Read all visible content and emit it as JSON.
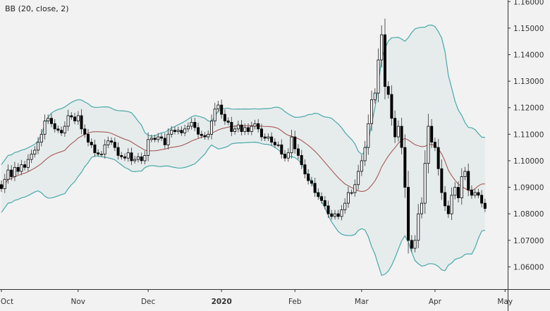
{
  "legend": "BB (20, close, 2)",
  "chart_data": {
    "type": "candlestick",
    "indicator": {
      "name": "Bollinger Bands",
      "period": 20,
      "source": "close",
      "stddev": 2
    },
    "ylim": [
      1.0516,
      1.1606
    ],
    "yticks": [
      "1.16000",
      "1.15000",
      "1.14000",
      "1.13000",
      "1.12000",
      "1.11000",
      "1.10000",
      "1.09000",
      "1.08000",
      "1.07000",
      "1.06000"
    ],
    "xticks": [
      {
        "label": "Oct",
        "bar": 0
      },
      {
        "label": "Nov",
        "bar": 23
      },
      {
        "label": "Dec",
        "bar": 44
      },
      {
        "label": "2020",
        "bar": 66,
        "bold": true
      },
      {
        "label": "Feb",
        "bar": 88
      },
      {
        "label": "Mar",
        "bar": 108
      },
      {
        "label": "Apr",
        "bar": 130
      },
      {
        "label": "May",
        "bar": 151
      }
    ],
    "closes": [
      1.0895,
      1.093,
      1.0965,
      1.094,
      1.0975,
      1.096,
      1.0985,
      1.0975,
      1.1005,
      1.1025,
      1.104,
      1.107,
      1.11,
      1.115,
      1.116,
      1.114,
      1.112,
      1.1115,
      1.1105,
      1.113,
      1.117,
      1.1165,
      1.115,
      1.117,
      1.112,
      1.11,
      1.107,
      1.106,
      1.103,
      1.1025,
      1.1025,
      1.106,
      1.1075,
      1.107,
      1.105,
      1.102,
      1.1015,
      1.101,
      1.103,
      1.1,
      1.1005,
      1.1015,
      1.1,
      1.102,
      1.108,
      1.1085,
      1.108,
      1.109,
      1.1085,
      1.106,
      1.11,
      1.1115,
      1.111,
      1.1115,
      1.1105,
      1.112,
      1.113,
      1.1145,
      1.1125,
      1.11,
      1.1095,
      1.109,
      1.11,
      1.115,
      1.1195,
      1.121,
      1.1175,
      1.115,
      1.1145,
      1.111,
      1.112,
      1.1135,
      1.111,
      1.1125,
      1.111,
      1.113,
      1.114,
      1.112,
      1.109,
      1.1085,
      1.109,
      1.107,
      1.106,
      1.106,
      1.1025,
      1.101,
      1.103,
      1.109,
      1.1045,
      1.102,
      1.0985,
      1.095,
      1.0925,
      1.0915,
      1.088,
      1.0865,
      1.085,
      1.083,
      1.08,
      1.079,
      1.08,
      1.079,
      1.0815,
      1.084,
      1.088,
      1.088,
      1.091,
      1.096,
      1.1,
      1.105,
      1.114,
      1.123,
      1.1255,
      1.138,
      1.1475,
      1.128,
      1.125,
      1.116,
      1.109,
      1.113,
      1.105,
      1.09,
      1.07,
      1.067,
      1.07,
      1.08,
      1.084,
      1.099,
      1.113,
      1.107,
      1.105,
      1.097,
      1.088,
      1.083,
      1.08,
      1.087,
      1.09,
      1.086,
      1.094,
      1.096,
      1.089,
      1.087,
      1.088,
      1.087,
      1.084,
      1.082
    ],
    "first_open": 1.091,
    "colors": {
      "up_body": "#ffffff",
      "down_body": "#000000",
      "band_line": "#4aa8a8",
      "band_fill": "#e6ecec",
      "basis": "#a04a4a",
      "background": "#f2f2f2"
    }
  }
}
